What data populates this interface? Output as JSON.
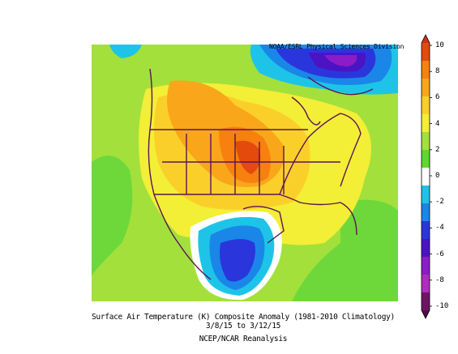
{
  "credit": "NOAA/ESRL Physical Sciences Division",
  "caption": {
    "line1": "Surface Air Temperature (K) Composite Anomaly (1981-2010 Climatology)",
    "line2": "3/8/15  to 3/12/15",
    "line3": "NCEP/NCAR Reanalysis"
  },
  "colorbar": {
    "labels": [
      "10",
      "8",
      "6",
      "4",
      "2",
      "0",
      "-2",
      "-4",
      "-6",
      "-8",
      "-10"
    ],
    "colors": [
      "#e34a0c",
      "#f7800f",
      "#f9a61a",
      "#fbcf2a",
      "#f3ee36",
      "#a3e03c",
      "#5ed82c",
      "#ffffff",
      "#1ec4e8",
      "#1a87e8",
      "#2a36dc",
      "#4a14c4",
      "#8c1cc8",
      "#b02cc0",
      "#6e1464"
    ]
  }
}
